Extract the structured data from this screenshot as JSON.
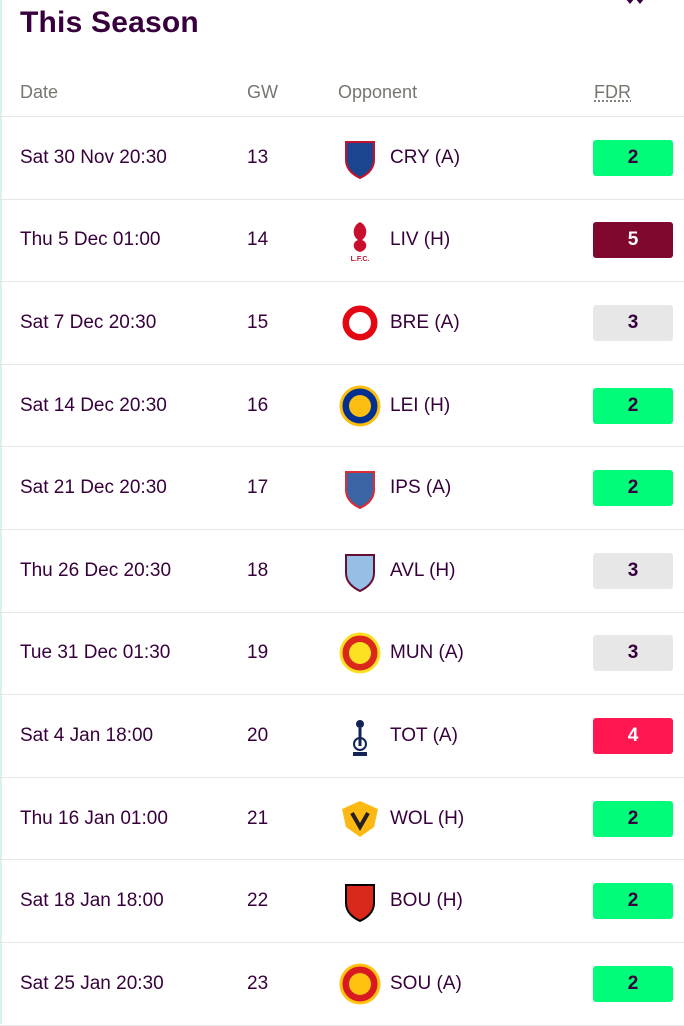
{
  "page": {
    "title": "This Season"
  },
  "table": {
    "headers": {
      "date": "Date",
      "gw": "GW",
      "opponent": "Opponent",
      "fdr": "FDR"
    },
    "fdr_colors": {
      "2": {
        "bg": "#01fc7a",
        "fg": "#37003c"
      },
      "3": {
        "bg": "#e7e7e7",
        "fg": "#37003c"
      },
      "4": {
        "bg": "#ff1751",
        "fg": "#ffffff"
      },
      "5": {
        "bg": "#80072d",
        "fg": "#ffffff"
      }
    },
    "rows": [
      {
        "date": "Sat 30 Nov 20:30",
        "gw": "13",
        "opponent": "CRY (A)",
        "fdr": "2",
        "badge": "crystal-palace-badge-icon",
        "color": "#1b458f",
        "accent": "#c4122e"
      },
      {
        "date": "Thu 5 Dec 01:00",
        "gw": "14",
        "opponent": "LIV (H)",
        "fdr": "5",
        "badge": "liverpool-badge-icon",
        "color": "#c8102e",
        "accent": "#c8102e"
      },
      {
        "date": "Sat 7 Dec 20:30",
        "gw": "15",
        "opponent": "BRE (A)",
        "fdr": "3",
        "badge": "brentford-badge-icon",
        "color": "#e30613",
        "accent": "#ffffff"
      },
      {
        "date": "Sat 14 Dec 20:30",
        "gw": "16",
        "opponent": "LEI (H)",
        "fdr": "2",
        "badge": "leicester-badge-icon",
        "color": "#003090",
        "accent": "#fdbe11"
      },
      {
        "date": "Sat 21 Dec 20:30",
        "gw": "17",
        "opponent": "IPS (A)",
        "fdr": "2",
        "badge": "ipswich-badge-icon",
        "color": "#3a64a3",
        "accent": "#de2c37"
      },
      {
        "date": "Thu 26 Dec 20:30",
        "gw": "18",
        "opponent": "AVL (H)",
        "fdr": "3",
        "badge": "aston-villa-badge-icon",
        "color": "#95bfe5",
        "accent": "#670e36"
      },
      {
        "date": "Tue 31 Dec 01:30",
        "gw": "19",
        "opponent": "MUN (A)",
        "fdr": "3",
        "badge": "man-united-badge-icon",
        "color": "#da291c",
        "accent": "#fbe122"
      },
      {
        "date": "Sat 4 Jan 18:00",
        "gw": "20",
        "opponent": "TOT (A)",
        "fdr": "4",
        "badge": "tottenham-badge-icon",
        "color": "#132257",
        "accent": "#132257"
      },
      {
        "date": "Thu 16 Jan 01:00",
        "gw": "21",
        "opponent": "WOL (H)",
        "fdr": "2",
        "badge": "wolves-badge-icon",
        "color": "#fdb913",
        "accent": "#231f20"
      },
      {
        "date": "Sat 18 Jan 18:00",
        "gw": "22",
        "opponent": "BOU (H)",
        "fdr": "2",
        "badge": "bournemouth-badge-icon",
        "color": "#da291c",
        "accent": "#000000"
      },
      {
        "date": "Sat 25 Jan 20:30",
        "gw": "23",
        "opponent": "SOU (A)",
        "fdr": "2",
        "badge": "southampton-badge-icon",
        "color": "#d71920",
        "accent": "#ffc20e"
      }
    ]
  }
}
